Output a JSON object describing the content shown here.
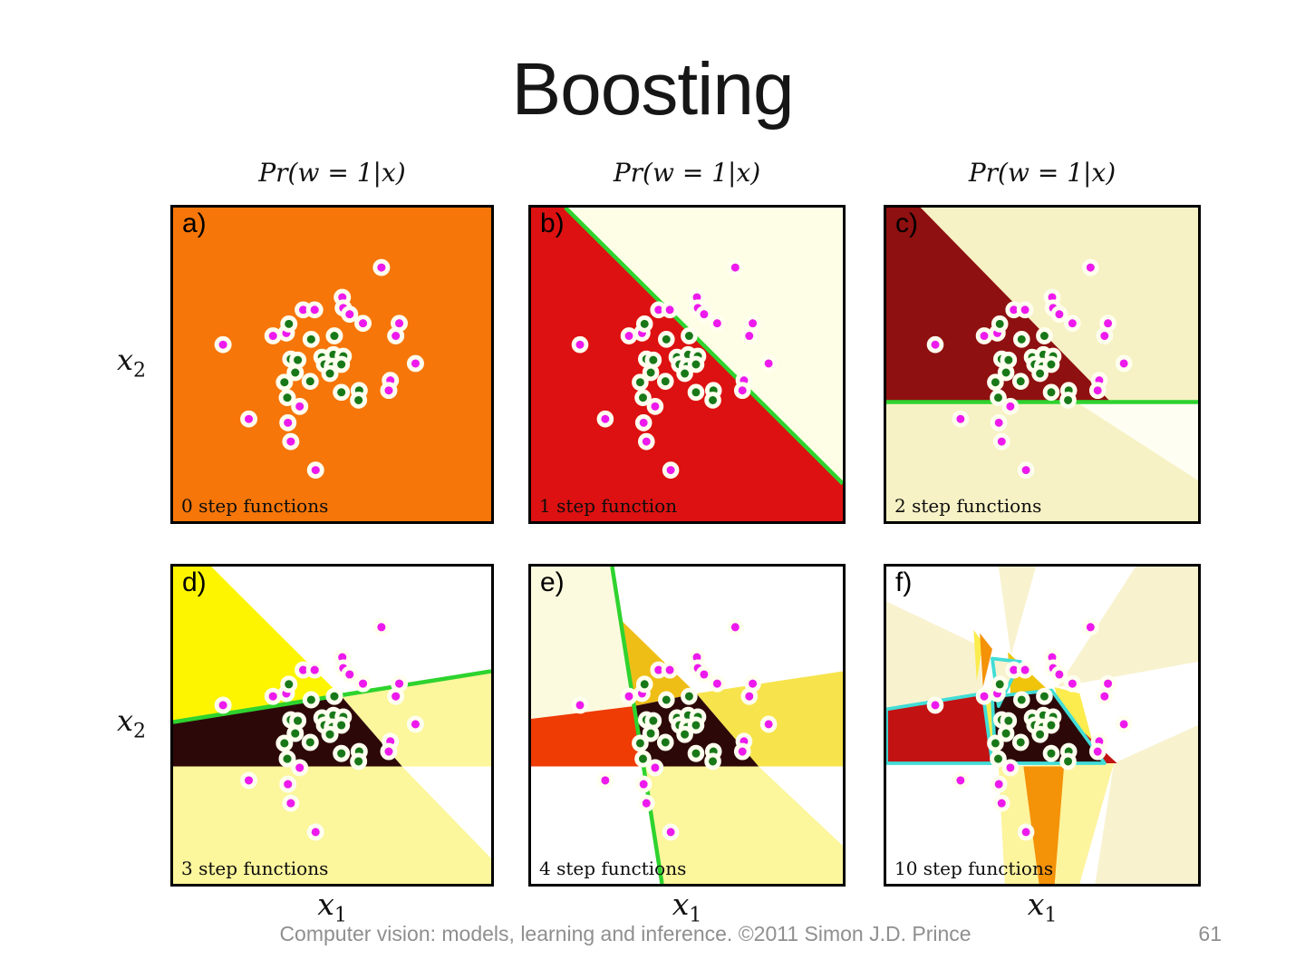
{
  "slide": {
    "title": "Boosting",
    "footer": "Computer vision: models, learning and inference.  ©2011 Simon J.D. Prince",
    "page_number": "61",
    "col_header": "Pr(w = 1|x)",
    "y_axis": {
      "base": "x",
      "sub": "2"
    },
    "x_axis": {
      "base": "x",
      "sub": "1"
    }
  },
  "colors": {
    "dot_outline": "#FFFFF0",
    "magenta_dot": "#ED1AED",
    "green_dot": "#187818",
    "green_line": "#2ED32E",
    "cyan_line": "#41DDD6",
    "panel_border": "#000000"
  },
  "chart_data": {
    "type": "scatter",
    "title": "Boosting",
    "xlabel": "x1",
    "ylabel": "x2",
    "panel_header": "Pr(w = 1|x)",
    "panel_captions": [
      "0 step functions",
      "1 step function",
      "2 step functions",
      "3 step functions",
      "4 step functions",
      "10 step functions"
    ],
    "coord_note": "point coordinates normalized 0-100 inside each panel, y downward; identical data set shown in all six panels",
    "series": [
      {
        "name": "class magenta",
        "color": "#ED1AED",
        "points": [
          [
            65.5,
            19.1
          ],
          [
            53.2,
            28.6
          ],
          [
            53.5,
            32.0
          ],
          [
            40.9,
            32.6
          ],
          [
            44.5,
            32.6
          ],
          [
            55.5,
            34.0
          ],
          [
            59.7,
            36.9
          ],
          [
            71.1,
            36.9
          ],
          [
            35.6,
            40.0
          ],
          [
            31.4,
            40.9
          ],
          [
            70.0,
            40.9
          ],
          [
            15.7,
            43.7
          ],
          [
            76.2,
            49.7
          ],
          [
            68.3,
            55.1
          ],
          [
            67.8,
            58.3
          ],
          [
            39.8,
            63.4
          ],
          [
            23.8,
            67.4
          ],
          [
            36.1,
            68.6
          ],
          [
            37.0,
            74.6
          ],
          [
            44.8,
            83.7
          ]
        ]
      },
      {
        "name": "class green",
        "color": "#187818",
        "points": [
          [
            36.4,
            37.1
          ],
          [
            43.4,
            42.0
          ],
          [
            50.7,
            40.9
          ],
          [
            37.0,
            48.3
          ],
          [
            39.2,
            48.6
          ],
          [
            46.8,
            47.7
          ],
          [
            50.4,
            46.9
          ],
          [
            53.5,
            47.4
          ],
          [
            47.6,
            50.0
          ],
          [
            50.1,
            50.6
          ],
          [
            52.9,
            50.0
          ],
          [
            49.3,
            52.9
          ],
          [
            38.4,
            52.6
          ],
          [
            43.1,
            55.4
          ],
          [
            35.0,
            55.7
          ],
          [
            35.9,
            60.6
          ],
          [
            52.9,
            58.9
          ],
          [
            58.5,
            58.3
          ],
          [
            58.3,
            61.4
          ]
        ]
      }
    ]
  },
  "panels": [
    {
      "id": "a",
      "label": "a)",
      "caption": "0 step functions",
      "bg": "#F67609",
      "regions": [],
      "lines": []
    },
    {
      "id": "b",
      "label": "b)",
      "caption": "1 step function",
      "bg": "#FEFEE6",
      "regions": [
        {
          "points": [
            [
              0,
              0
            ],
            [
              11,
              0
            ],
            [
              100,
              88
            ],
            [
              100,
              100
            ],
            [
              0,
              100
            ]
          ],
          "fill": "#DD1111"
        }
      ],
      "lines": [
        {
          "points": [
            [
              11,
              0
            ],
            [
              100,
              88
            ]
          ],
          "color": "#2ED32E",
          "width": 1.3
        }
      ]
    },
    {
      "id": "c",
      "label": "c)",
      "caption": "2 step functions",
      "bg": "#F7F2C5",
      "regions": [
        {
          "points": [
            [
              61,
              62
            ],
            [
              100,
              62
            ],
            [
              100,
              87
            ]
          ],
          "fill": "#FEFEF2"
        },
        {
          "points": [
            [
              0,
              0
            ],
            [
              11,
              0
            ],
            [
              72,
              62
            ],
            [
              0,
              62
            ]
          ],
          "fill": "#8E1010"
        }
      ],
      "lines": [
        {
          "points": [
            [
              0,
              62
            ],
            [
              100,
              62
            ]
          ],
          "color": "#2ED32E",
          "width": 1.3
        }
      ]
    },
    {
      "id": "d",
      "label": "d)",
      "caption": "3 step functions",
      "bg": "#FFFFFF",
      "regions": [
        {
          "points": [
            [
              0,
              0
            ],
            [
              12,
              0
            ],
            [
              53,
              41
            ],
            [
              0,
              49
            ]
          ],
          "fill": "#FDF500"
        },
        {
          "points": [
            [
              53,
              41
            ],
            [
              100,
              33
            ],
            [
              100,
              63
            ],
            [
              72,
              63
            ]
          ],
          "fill": "#FCF69C"
        },
        {
          "points": [
            [
              0,
              63
            ],
            [
              72,
              63
            ],
            [
              100,
              92
            ],
            [
              100,
              100
            ],
            [
              0,
              100
            ]
          ],
          "fill": "#FCF69C"
        },
        {
          "points": [
            [
              0,
              49
            ],
            [
              53,
              41
            ],
            [
              72,
              63
            ],
            [
              0,
              63
            ]
          ],
          "fill": "#2D0808"
        }
      ],
      "lines": [
        {
          "points": [
            [
              0,
              49
            ],
            [
              100,
              33
            ]
          ],
          "color": "#2ED32E",
          "width": 1.3
        }
      ]
    },
    {
      "id": "e",
      "label": "e)",
      "caption": "4 step functions",
      "bg": "#FFFFFF",
      "regions": [
        {
          "points": [
            [
              0,
              0
            ],
            [
              26,
              0
            ],
            [
              33,
              44
            ],
            [
              0,
              48
            ]
          ],
          "fill": "#FCFADE"
        },
        {
          "points": [
            [
              29,
              17
            ],
            [
              53,
              40
            ],
            [
              33,
              44
            ]
          ],
          "fill": "#EFBE16"
        },
        {
          "points": [
            [
              53,
              40
            ],
            [
              100,
              33
            ],
            [
              100,
              63
            ],
            [
              73,
              63
            ]
          ],
          "fill": "#F7E44C"
        },
        {
          "points": [
            [
              0,
              48
            ],
            [
              33,
              44
            ],
            [
              36,
              63
            ],
            [
              0,
              63
            ]
          ],
          "fill": "#EF3B04"
        },
        {
          "points": [
            [
              33,
              44
            ],
            [
              53,
              40
            ],
            [
              73,
              63
            ],
            [
              36,
              63
            ]
          ],
          "fill": "#2D0808"
        },
        {
          "points": [
            [
              36,
              63
            ],
            [
              73,
              63
            ],
            [
              100,
              88
            ],
            [
              100,
              100
            ],
            [
              42,
              100
            ]
          ],
          "fill": "#FCF69C"
        }
      ],
      "lines": [
        {
          "points": [
            [
              26,
              0
            ],
            [
              42,
              100
            ]
          ],
          "color": "#2ED32E",
          "width": 1.3
        }
      ]
    },
    {
      "id": "f",
      "label": "f)",
      "caption": "10 step functions",
      "bg": "#FFFFFF",
      "regions": [
        {
          "points": [
            [
              0,
              11
            ],
            [
              30,
              25
            ],
            [
              31,
              41
            ],
            [
              0,
              46
            ]
          ],
          "fill": "#F8F2CF"
        },
        {
          "points": [
            [
              36,
              0
            ],
            [
              48,
              0
            ],
            [
              40,
              28
            ]
          ],
          "fill": "#F8F2CF"
        },
        {
          "points": [
            [
              80,
              0
            ],
            [
              100,
              0
            ],
            [
              100,
              30
            ],
            [
              55,
              38
            ]
          ],
          "fill": "#F8F2CF"
        },
        {
          "points": [
            [
              73,
              62
            ],
            [
              100,
              50
            ],
            [
              100,
              100
            ],
            [
              67,
              100
            ]
          ],
          "fill": "#F8F2CF"
        },
        {
          "points": [
            [
              36,
              63
            ],
            [
              73,
              62
            ],
            [
              62,
              100
            ],
            [
              38,
              100
            ]
          ],
          "fill": "#FDF49E"
        },
        {
          "points": [
            [
              28,
              20
            ],
            [
              31,
              24
            ],
            [
              29,
              36
            ]
          ],
          "fill": "#FCEC4E"
        },
        {
          "points": [
            [
              30,
              21
            ],
            [
              34,
              26
            ],
            [
              31,
              38
            ]
          ],
          "fill": "#F49208"
        },
        {
          "points": [
            [
              39,
              27
            ],
            [
              52,
              39
            ],
            [
              40,
              42
            ]
          ],
          "fill": "#EFC40A"
        },
        {
          "points": [
            [
              30,
              42
            ],
            [
              35,
              43
            ],
            [
              34,
              62
            ],
            [
              29,
              62
            ]
          ],
          "fill": "#FCEC4E"
        },
        {
          "points": [
            [
              54,
              38
            ],
            [
              62,
              40
            ],
            [
              68,
              62
            ],
            [
              60,
              62
            ]
          ],
          "fill": "#FCEC4E"
        },
        {
          "points": [
            [
              50,
              40
            ],
            [
              74,
              62
            ],
            [
              66,
              62
            ],
            [
              48,
              44
            ]
          ],
          "fill": "#C21212"
        },
        {
          "points": [
            [
              0,
              45
            ],
            [
              31,
              40
            ],
            [
              34,
              62
            ],
            [
              0,
              62
            ]
          ],
          "fill": "#C21212",
          "stroke": "#41DDD6"
        },
        {
          "points": [
            [
              34,
              41
            ],
            [
              53,
              39
            ],
            [
              70,
              62
            ],
            [
              35,
              62
            ]
          ],
          "fill": "#2D0808",
          "stroke": "#41DDD6"
        },
        {
          "points": [
            [
              34,
              29
            ],
            [
              43,
              30
            ],
            [
              36,
              44
            ]
          ],
          "fill": "#F8F2CF",
          "stroke": "#41DDD6"
        },
        {
          "points": [
            [
              44,
              63
            ],
            [
              57,
              63
            ],
            [
              54,
              100
            ],
            [
              49,
              100
            ]
          ],
          "fill": "#F49208"
        }
      ],
      "lines": []
    }
  ]
}
